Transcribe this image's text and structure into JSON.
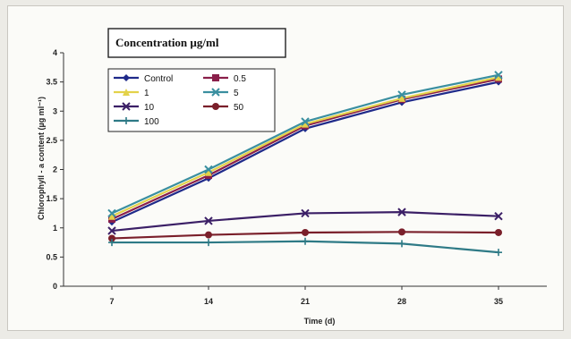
{
  "chart_data": {
    "type": "line",
    "title": "Concentration µg/ml",
    "xlabel": "Time (d)",
    "ylabel": "Chlorophyll - a content (µg ml⁻¹)",
    "categories": [
      "7",
      "14",
      "21",
      "28",
      "35"
    ],
    "ylim": [
      0,
      4
    ],
    "yticks": [
      "0",
      "0.5",
      "1",
      "1.5",
      "2",
      "2.5",
      "3",
      "3.5",
      "4"
    ],
    "grid": false,
    "legend_position": "top-left",
    "series": [
      {
        "name": "Control",
        "color": "#1f2a8a",
        "marker": "diamond",
        "values": [
          1.1,
          1.85,
          2.7,
          3.15,
          3.5
        ]
      },
      {
        "name": "0.5",
        "color": "#8a1f4a",
        "marker": "square",
        "values": [
          1.15,
          1.9,
          2.75,
          3.2,
          3.55
        ]
      },
      {
        "name": "1",
        "color": "#e3d24a",
        "marker": "triangle",
        "values": [
          1.2,
          1.95,
          2.78,
          3.22,
          3.58
        ]
      },
      {
        "name": "5",
        "color": "#3a8fa0",
        "marker": "x",
        "values": [
          1.25,
          2.0,
          2.82,
          3.28,
          3.62
        ]
      },
      {
        "name": "10",
        "color": "#3b1f66",
        "marker": "x",
        "values": [
          0.95,
          1.12,
          1.25,
          1.27,
          1.2
        ]
      },
      {
        "name": "50",
        "color": "#7a1f2a",
        "marker": "circle",
        "values": [
          0.82,
          0.88,
          0.92,
          0.93,
          0.92
        ]
      },
      {
        "name": "100",
        "color": "#2e7a86",
        "marker": "plus",
        "values": [
          0.75,
          0.75,
          0.77,
          0.73,
          0.58
        ]
      }
    ]
  }
}
